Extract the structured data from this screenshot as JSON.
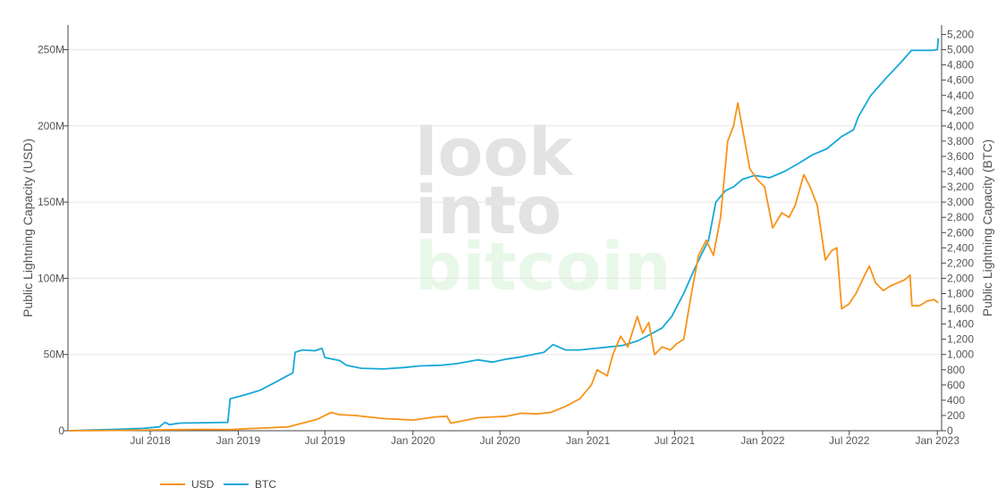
{
  "watermark": {
    "line1": "look",
    "line2": "into",
    "line3": "bitcoin"
  },
  "legend": [
    {
      "label": "USD",
      "color": "#f7931a"
    },
    {
      "label": "BTC",
      "color": "#17a8d8"
    }
  ],
  "chart_data": {
    "type": "line",
    "xlabel": "",
    "ylabel": "Public Lightning Capacity (USD)",
    "y2label": "Public Lightning Capacity (BTC)",
    "x_range": [
      "2018-01-10",
      "2023-01-10"
    ],
    "x_ticks": [
      {
        "label": "Jul 2018",
        "date": "2018-07-01"
      },
      {
        "label": "Jan 2019",
        "date": "2019-01-01"
      },
      {
        "label": "Jul 2019",
        "date": "2019-07-01"
      },
      {
        "label": "Jan 2020",
        "date": "2020-01-01"
      },
      {
        "label": "Jul 2020",
        "date": "2020-07-01"
      },
      {
        "label": "Jan 2021",
        "date": "2021-01-01"
      },
      {
        "label": "Jul 2021",
        "date": "2021-07-01"
      },
      {
        "label": "Jan 2022",
        "date": "2022-01-01"
      },
      {
        "label": "Jul 2022",
        "date": "2022-07-01"
      },
      {
        "label": "Jan 2023",
        "date": "2023-01-01"
      }
    ],
    "y_left_ticks": [
      "0",
      "50M",
      "100M",
      "150M",
      "200M",
      "250M"
    ],
    "y_left_tick_values": [
      0,
      50000000,
      100000000,
      150000000,
      200000000,
      250000000
    ],
    "ylim_left": [
      0,
      265000000
    ],
    "y_right_ticks": [
      "0",
      "200",
      "400",
      "600",
      "800",
      "1,000",
      "1,200",
      "1,400",
      "1,600",
      "1,800",
      "2,000",
      "2,200",
      "2,400",
      "2,600",
      "2,800",
      "3,000",
      "3,200",
      "3,400",
      "3,600",
      "3,800",
      "4,000",
      "4,200",
      "4,400",
      "4,600",
      "4,800",
      "5,000",
      "5,200"
    ],
    "y_right_tick_values": [
      0,
      200,
      400,
      600,
      800,
      1000,
      1200,
      1400,
      1600,
      1800,
      2000,
      2200,
      2400,
      2600,
      2800,
      3000,
      3200,
      3400,
      3600,
      3800,
      4000,
      4200,
      4400,
      4600,
      4800,
      5000,
      5200
    ],
    "ylim_right": [
      0,
      5300
    ],
    "grid": true,
    "legend_position": "bottom-left",
    "series": [
      {
        "name": "USD",
        "axis": "left",
        "color": "#f7931a",
        "points": [
          [
            "2018-01-10",
            0
          ],
          [
            "2018-03-01",
            100000
          ],
          [
            "2018-05-01",
            250000
          ],
          [
            "2018-07-01",
            500000
          ],
          [
            "2018-09-01",
            700000
          ],
          [
            "2018-11-01",
            900000
          ],
          [
            "2018-12-15",
            700000
          ],
          [
            "2019-01-15",
            1300000
          ],
          [
            "2019-03-01",
            1800000
          ],
          [
            "2019-04-15",
            2500000
          ],
          [
            "2019-05-15",
            5000000
          ],
          [
            "2019-06-15",
            7500000
          ],
          [
            "2019-07-01",
            10000000
          ],
          [
            "2019-07-15",
            12000000
          ],
          [
            "2019-08-01",
            10500000
          ],
          [
            "2019-09-01",
            10000000
          ],
          [
            "2019-10-01",
            9000000
          ],
          [
            "2019-11-01",
            8000000
          ],
          [
            "2019-12-01",
            7500000
          ],
          [
            "2020-01-01",
            7000000
          ],
          [
            "2020-02-15",
            9000000
          ],
          [
            "2020-03-12",
            9500000
          ],
          [
            "2020-03-20",
            5000000
          ],
          [
            "2020-04-15",
            6500000
          ],
          [
            "2020-05-15",
            8500000
          ],
          [
            "2020-06-15",
            9000000
          ],
          [
            "2020-07-15",
            9500000
          ],
          [
            "2020-08-15",
            11500000
          ],
          [
            "2020-09-15",
            11000000
          ],
          [
            "2020-10-15",
            12000000
          ],
          [
            "2020-11-15",
            16000000
          ],
          [
            "2020-12-15",
            21000000
          ],
          [
            "2021-01-08",
            30000000
          ],
          [
            "2021-01-20",
            40000000
          ],
          [
            "2021-02-10",
            36000000
          ],
          [
            "2021-02-22",
            50000000
          ],
          [
            "2021-03-10",
            62000000
          ],
          [
            "2021-03-25",
            55000000
          ],
          [
            "2021-04-14",
            75000000
          ],
          [
            "2021-04-25",
            64000000
          ],
          [
            "2021-05-08",
            71000000
          ],
          [
            "2021-05-20",
            50000000
          ],
          [
            "2021-06-05",
            55000000
          ],
          [
            "2021-06-22",
            53000000
          ],
          [
            "2021-07-05",
            57000000
          ],
          [
            "2021-07-20",
            60000000
          ],
          [
            "2021-08-05",
            90000000
          ],
          [
            "2021-08-20",
            115000000
          ],
          [
            "2021-09-05",
            125000000
          ],
          [
            "2021-09-20",
            115000000
          ],
          [
            "2021-10-05",
            140000000
          ],
          [
            "2021-10-20",
            190000000
          ],
          [
            "2021-11-01",
            200000000
          ],
          [
            "2021-11-10",
            215000000
          ],
          [
            "2021-11-20",
            198000000
          ],
          [
            "2021-12-05",
            172000000
          ],
          [
            "2021-12-20",
            165000000
          ],
          [
            "2022-01-05",
            160000000
          ],
          [
            "2022-01-22",
            133000000
          ],
          [
            "2022-02-10",
            143000000
          ],
          [
            "2022-02-25",
            140000000
          ],
          [
            "2022-03-10",
            148000000
          ],
          [
            "2022-03-28",
            168000000
          ],
          [
            "2022-04-10",
            160000000
          ],
          [
            "2022-04-25",
            148000000
          ],
          [
            "2022-05-12",
            112000000
          ],
          [
            "2022-05-25",
            118000000
          ],
          [
            "2022-06-05",
            120000000
          ],
          [
            "2022-06-15",
            80000000
          ],
          [
            "2022-06-30",
            83000000
          ],
          [
            "2022-07-15",
            90000000
          ],
          [
            "2022-07-30",
            100000000
          ],
          [
            "2022-08-12",
            108000000
          ],
          [
            "2022-08-25",
            97000000
          ],
          [
            "2022-09-10",
            92000000
          ],
          [
            "2022-09-25",
            95000000
          ],
          [
            "2022-10-10",
            97000000
          ],
          [
            "2022-10-25",
            99000000
          ],
          [
            "2022-11-05",
            102000000
          ],
          [
            "2022-11-09",
            82000000
          ],
          [
            "2022-11-25",
            82000000
          ],
          [
            "2022-12-10",
            85000000
          ],
          [
            "2022-12-25",
            86000000
          ],
          [
            "2023-01-03",
            84000000
          ]
        ]
      },
      {
        "name": "BTC",
        "axis": "right",
        "color": "#17a8d8",
        "points": [
          [
            "2018-01-10",
            0
          ],
          [
            "2018-03-01",
            10
          ],
          [
            "2018-05-01",
            20
          ],
          [
            "2018-06-15",
            30
          ],
          [
            "2018-07-20",
            50
          ],
          [
            "2018-08-01",
            110
          ],
          [
            "2018-08-10",
            80
          ],
          [
            "2018-09-01",
            100
          ],
          [
            "2018-11-01",
            105
          ],
          [
            "2018-12-10",
            110
          ],
          [
            "2018-12-15",
            420
          ],
          [
            "2019-01-15",
            470
          ],
          [
            "2019-02-15",
            530
          ],
          [
            "2019-03-15",
            620
          ],
          [
            "2019-04-25",
            760
          ],
          [
            "2019-04-30",
            1030
          ],
          [
            "2019-05-15",
            1060
          ],
          [
            "2019-06-10",
            1050
          ],
          [
            "2019-06-25",
            1080
          ],
          [
            "2019-07-01",
            960
          ],
          [
            "2019-08-01",
            920
          ],
          [
            "2019-08-15",
            860
          ],
          [
            "2019-09-15",
            820
          ],
          [
            "2019-11-01",
            810
          ],
          [
            "2019-12-15",
            830
          ],
          [
            "2020-01-15",
            850
          ],
          [
            "2020-03-01",
            860
          ],
          [
            "2020-04-01",
            880
          ],
          [
            "2020-05-15",
            930
          ],
          [
            "2020-06-15",
            900
          ],
          [
            "2020-07-15",
            940
          ],
          [
            "2020-08-15",
            970
          ],
          [
            "2020-10-01",
            1030
          ],
          [
            "2020-10-20",
            1130
          ],
          [
            "2020-11-15",
            1060
          ],
          [
            "2020-12-15",
            1060
          ],
          [
            "2021-01-15",
            1080
          ],
          [
            "2021-02-15",
            1100
          ],
          [
            "2021-03-15",
            1120
          ],
          [
            "2021-04-15",
            1180
          ],
          [
            "2021-05-10",
            1260
          ],
          [
            "2021-06-05",
            1350
          ],
          [
            "2021-06-25",
            1500
          ],
          [
            "2021-07-20",
            1800
          ],
          [
            "2021-08-10",
            2100
          ],
          [
            "2021-08-25",
            2300
          ],
          [
            "2021-09-10",
            2500
          ],
          [
            "2021-09-25",
            3000
          ],
          [
            "2021-10-15",
            3150
          ],
          [
            "2021-11-01",
            3200
          ],
          [
            "2021-11-20",
            3300
          ],
          [
            "2021-12-15",
            3350
          ],
          [
            "2022-01-15",
            3320
          ],
          [
            "2022-02-15",
            3400
          ],
          [
            "2022-03-15",
            3500
          ],
          [
            "2022-04-15",
            3620
          ],
          [
            "2022-05-15",
            3700
          ],
          [
            "2022-06-15",
            3860
          ],
          [
            "2022-07-10",
            3950
          ],
          [
            "2022-07-20",
            4120
          ],
          [
            "2022-08-15",
            4400
          ],
          [
            "2022-09-15",
            4620
          ],
          [
            "2022-10-15",
            4820
          ],
          [
            "2022-11-08",
            4990
          ],
          [
            "2022-12-01",
            4990
          ],
          [
            "2022-12-20",
            4990
          ],
          [
            "2023-01-01",
            5000
          ],
          [
            "2023-01-03",
            5150
          ]
        ]
      }
    ]
  }
}
